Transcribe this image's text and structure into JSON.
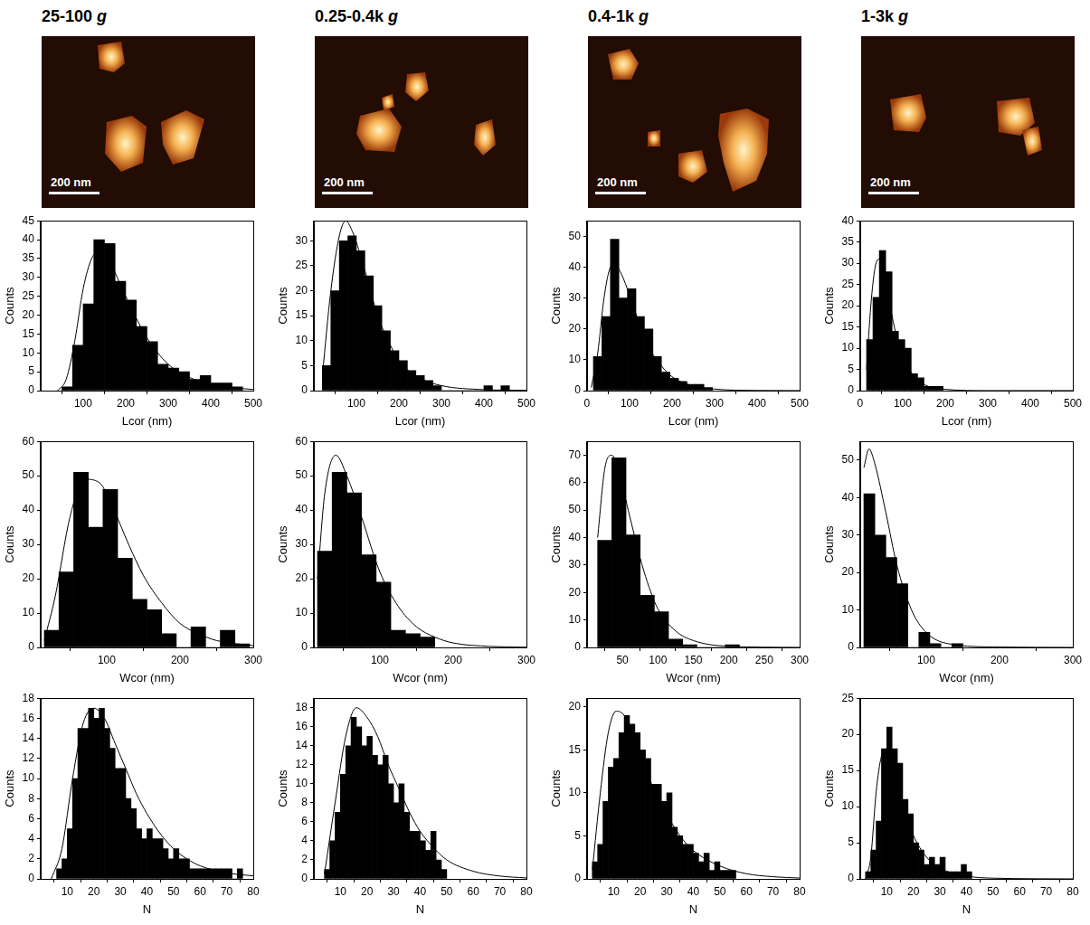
{
  "panel_titles": [
    "25-100 g",
    "0.25-0.4k g",
    "0.4-1k g",
    "1-3k g"
  ],
  "images": [
    {
      "scale_bar": "200 nm"
    },
    {
      "scale_bar": "200 nm"
    },
    {
      "scale_bar": "200 nm"
    },
    {
      "scale_bar": "200 nm"
    }
  ],
  "chart_data": [
    {
      "type": "histogram",
      "xlabel": "Lcor (nm)",
      "ylabel": "Counts",
      "color": "#000000",
      "grid": false,
      "bins": [
        50,
        75,
        100,
        125,
        150,
        175,
        200,
        225,
        250,
        275,
        300,
        325,
        350,
        375,
        400,
        425,
        450,
        475
      ],
      "counts": [
        1,
        12,
        23,
        40,
        39,
        29,
        24,
        17,
        13,
        7,
        6,
        5,
        3,
        4,
        2,
        2,
        1
      ],
      "fit": {
        "x": [
          40,
          60,
          80,
          100,
          120,
          140,
          160,
          180,
          200,
          250,
          300,
          350,
          400,
          450,
          500
        ],
        "values": [
          0,
          3,
          13,
          27,
          35,
          37,
          35,
          30,
          25,
          14,
          7,
          3.5,
          1.7,
          0.8,
          0.3
        ]
      },
      "xlim": [
        0,
        500
      ],
      "xticks": [
        100,
        200,
        300,
        400,
        500
      ],
      "ylim": [
        0,
        45
      ],
      "yticks": [
        0,
        5,
        10,
        15,
        20,
        25,
        30,
        35,
        40,
        45
      ]
    },
    {
      "type": "histogram",
      "xlabel": "Lcor (nm)",
      "ylabel": "Counts",
      "color": "#000000",
      "grid": false,
      "bins": [
        20,
        40,
        60,
        80,
        100,
        120,
        140,
        160,
        180,
        200,
        220,
        240,
        260,
        280,
        300,
        320,
        340,
        360,
        380,
        400,
        420,
        440,
        460
      ],
      "counts": [
        5,
        20,
        30,
        31,
        28,
        23,
        17,
        12,
        8,
        6,
        4,
        3,
        2,
        1,
        0,
        0,
        0,
        0,
        0,
        1,
        0,
        1
      ],
      "fit": {
        "x": [
          20,
          40,
          60,
          75,
          90,
          110,
          130,
          150,
          175,
          200,
          250,
          300,
          400,
          500
        ],
        "values": [
          3,
          20,
          31,
          34,
          32,
          27,
          21,
          15,
          10,
          6,
          2.5,
          1,
          0.2,
          0.05
        ]
      },
      "xlim": [
        0,
        500
      ],
      "xticks": [
        100,
        200,
        300,
        400,
        500
      ],
      "ylim": [
        0,
        34
      ],
      "yticks": [
        0,
        5,
        10,
        15,
        20,
        25,
        30
      ]
    },
    {
      "type": "histogram",
      "xlabel": "Lcor (nm)",
      "ylabel": "Counts",
      "color": "#000000",
      "grid": false,
      "bins": [
        15,
        35,
        55,
        75,
        95,
        115,
        135,
        155,
        175,
        195,
        215,
        235,
        255,
        275,
        295
      ],
      "counts": [
        11,
        24,
        49,
        30,
        33,
        24,
        20,
        11,
        6,
        4,
        3,
        2,
        2,
        1
      ],
      "fit": {
        "x": [
          10,
          25,
          40,
          55,
          65,
          80,
          100,
          125,
          150,
          175,
          200,
          250,
          300,
          400,
          500
        ],
        "values": [
          1,
          12,
          30,
          40,
          41,
          38,
          31,
          21,
          13,
          8,
          4.5,
          1.5,
          0.5,
          0.05,
          0
        ]
      },
      "xlim": [
        0,
        500
      ],
      "xticks": [
        0,
        100,
        200,
        300,
        400,
        500
      ],
      "ylim": [
        0,
        55
      ],
      "yticks": [
        0,
        10,
        20,
        30,
        40,
        50
      ]
    },
    {
      "type": "histogram",
      "xlabel": "Lcor (nm)",
      "ylabel": "Counts",
      "color": "#000000",
      "grid": false,
      "bins": [
        15,
        30,
        45,
        60,
        75,
        90,
        105,
        120,
        135,
        150,
        165,
        180,
        195
      ],
      "counts": [
        12,
        22,
        33,
        28,
        14,
        12,
        10,
        4,
        3,
        1,
        1,
        1
      ],
      "fit": {
        "x": [
          15,
          25,
          35,
          45,
          55,
          70,
          90,
          110,
          130,
          160,
          200,
          300,
          500
        ],
        "values": [
          5,
          20,
          29,
          31,
          28,
          20,
          11,
          6,
          3,
          1,
          0.3,
          0,
          0
        ]
      },
      "xlim": [
        0,
        500
      ],
      "xticks": [
        0,
        100,
        200,
        300,
        400,
        500
      ],
      "ylim": [
        0,
        40
      ],
      "yticks": [
        0,
        5,
        10,
        15,
        20,
        25,
        30,
        35,
        40
      ]
    },
    {
      "type": "histogram",
      "xlabel": "Wcor (nm)",
      "ylabel": "Counts",
      "color": "#000000",
      "grid": false,
      "bins": [
        15,
        35,
        55,
        75,
        95,
        115,
        135,
        155,
        175,
        195,
        215,
        235,
        255,
        275,
        295
      ],
      "counts": [
        5,
        22,
        51,
        35,
        46,
        26,
        14,
        11,
        4,
        0,
        6,
        0,
        5,
        1
      ],
      "fit": {
        "x": [
          15,
          30,
          50,
          70,
          90,
          110,
          130,
          150,
          175,
          200,
          225,
          250,
          300
        ],
        "values": [
          2,
          15,
          38,
          49,
          48,
          40,
          30,
          21,
          13,
          7,
          4,
          2,
          0.5
        ]
      },
      "xlim": [
        10,
        300
      ],
      "xticks": [
        100,
        200,
        300
      ],
      "ylim": [
        0,
        60
      ],
      "yticks": [
        0,
        10,
        20,
        30,
        40,
        50,
        60
      ]
    },
    {
      "type": "histogram",
      "xlabel": "Wcor (nm)",
      "ylabel": "Counts",
      "color": "#000000",
      "grid": false,
      "bins": [
        15,
        35,
        55,
        75,
        95,
        115,
        135,
        155,
        175
      ],
      "counts": [
        28,
        51,
        45,
        27,
        19,
        5,
        4,
        3
      ],
      "fit": {
        "x": [
          15,
          25,
          40,
          55,
          75,
          100,
          125,
          150,
          175,
          200,
          250,
          300
        ],
        "values": [
          20,
          45,
          56,
          50,
          38,
          22,
          12,
          6,
          3,
          1.3,
          0.3,
          0.05
        ]
      },
      "xlim": [
        10,
        300
      ],
      "xticks": [
        100,
        200,
        300
      ],
      "ylim": [
        0,
        60
      ],
      "yticks": [
        0,
        10,
        20,
        30,
        40,
        50,
        60
      ]
    },
    {
      "type": "histogram",
      "xlabel": "Wcor (nm)",
      "ylabel": "Counts",
      "color": "#000000",
      "grid": false,
      "bins": [
        15,
        35,
        55,
        75,
        95,
        115,
        135,
        155,
        175,
        195,
        215
      ],
      "counts": [
        39,
        69,
        41,
        19,
        13,
        3,
        1,
        0,
        0,
        1
      ],
      "fit": {
        "x": [
          15,
          25,
          35,
          45,
          60,
          80,
          100,
          125,
          150,
          200,
          300
        ],
        "values": [
          40,
          65,
          70,
          64,
          48,
          28,
          14,
          6,
          2.5,
          0.4,
          0
        ]
      },
      "xlim": [
        0,
        300
      ],
      "xticks": [
        50,
        100,
        150,
        200,
        250,
        300
      ],
      "ylim": [
        0,
        75
      ],
      "yticks": [
        0,
        10,
        20,
        30,
        40,
        50,
        60,
        70
      ]
    },
    {
      "type": "histogram",
      "xlabel": "Wcor (nm)",
      "ylabel": "Counts",
      "color": "#000000",
      "grid": false,
      "bins": [
        15,
        30,
        45,
        60,
        75,
        90,
        105,
        120,
        135,
        150
      ],
      "counts": [
        41,
        30,
        24,
        17,
        0,
        4,
        1,
        0,
        1
      ],
      "fit": {
        "x": [
          15,
          22,
          30,
          45,
          60,
          80,
          100,
          130,
          200,
          300
        ],
        "values": [
          48,
          53,
          49,
          36,
          22,
          10,
          4,
          1,
          0.1,
          0
        ]
      },
      "xlim": [
        10,
        300
      ],
      "xticks": [
        100,
        200,
        300
      ],
      "ylim": [
        0,
        55
      ],
      "yticks": [
        0,
        10,
        20,
        30,
        40,
        50
      ]
    },
    {
      "type": "histogram",
      "xlabel": "N",
      "ylabel": "Counts",
      "color": "#000000",
      "grid": false,
      "bins": [
        6,
        8,
        10,
        12,
        14,
        16,
        18,
        20,
        22,
        24,
        26,
        28,
        30,
        32,
        34,
        36,
        38,
        40,
        42,
        44,
        46,
        48,
        50,
        52,
        54,
        56,
        58,
        60,
        62,
        64,
        66,
        68,
        70,
        72,
        74,
        76
      ],
      "counts": [
        1,
        2,
        5,
        10,
        15,
        15,
        17,
        16,
        17,
        15,
        13,
        11,
        11,
        8,
        7,
        5,
        4,
        5,
        4,
        4,
        3,
        2,
        3,
        2,
        2,
        1,
        1,
        1,
        1,
        1,
        1,
        1,
        1,
        0,
        1
      ],
      "fit": {
        "x": [
          4,
          8,
          12,
          16,
          20,
          24,
          28,
          32,
          36,
          40,
          45,
          50,
          55,
          60,
          70,
          80
        ],
        "values": [
          0,
          3,
          10,
          15.5,
          17,
          16,
          13.5,
          11,
          8.5,
          6.5,
          4.5,
          3,
          2,
          1.3,
          0.6,
          0.3
        ]
      },
      "xlim": [
        0,
        80
      ],
      "xticks": [
        10,
        20,
        30,
        40,
        50,
        60,
        70,
        80
      ],
      "ylim": [
        0,
        18
      ],
      "yticks": [
        0,
        2,
        4,
        6,
        8,
        10,
        12,
        14,
        16,
        18
      ]
    },
    {
      "type": "histogram",
      "xlabel": "N",
      "ylabel": "Counts",
      "color": "#000000",
      "grid": false,
      "bins": [
        4,
        6,
        8,
        10,
        12,
        14,
        16,
        18,
        20,
        22,
        24,
        26,
        28,
        30,
        32,
        34,
        36,
        38,
        40,
        42,
        44,
        46,
        48,
        50
      ],
      "counts": [
        1,
        4,
        7,
        11,
        14,
        17,
        16,
        14,
        15,
        13,
        12,
        13,
        10,
        8,
        10,
        7,
        5,
        5,
        4,
        3,
        5,
        2,
        1
      ],
      "fit": {
        "x": [
          4,
          8,
          12,
          16,
          20,
          24,
          28,
          32,
          36,
          40,
          45,
          50,
          60,
          70,
          80
        ],
        "values": [
          0.5,
          8,
          15,
          18,
          17,
          15,
          12,
          9.5,
          7,
          5,
          3.3,
          2,
          0.8,
          0.3,
          0.1
        ]
      },
      "xlim": [
        0,
        80
      ],
      "xticks": [
        10,
        20,
        30,
        40,
        50,
        60,
        70,
        80
      ],
      "ylim": [
        0,
        19
      ],
      "yticks": [
        0,
        2,
        4,
        6,
        8,
        10,
        12,
        14,
        16,
        18
      ]
    },
    {
      "type": "histogram",
      "xlabel": "N",
      "ylabel": "Counts",
      "color": "#000000",
      "grid": false,
      "bins": [
        2,
        4,
        6,
        8,
        10,
        12,
        14,
        16,
        18,
        20,
        22,
        24,
        26,
        28,
        30,
        32,
        34,
        36,
        38,
        40,
        42,
        44,
        46,
        48,
        50,
        52,
        54,
        56
      ],
      "counts": [
        2,
        4,
        9,
        13,
        14,
        17,
        19,
        18,
        17,
        15,
        14,
        11,
        11,
        9,
        10,
        6,
        5,
        4,
        4,
        3,
        2,
        3,
        1,
        2,
        1,
        1,
        1
      ],
      "fit": {
        "x": [
          2,
          5,
          8,
          11,
          14,
          17,
          20,
          25,
          30,
          35,
          40,
          50,
          60,
          70,
          80
        ],
        "values": [
          1,
          10,
          17,
          19.5,
          19,
          17,
          14.5,
          10.5,
          7.5,
          5,
          3.3,
          1.5,
          0.6,
          0.25,
          0.1
        ]
      },
      "xlim": [
        0,
        80
      ],
      "xticks": [
        10,
        20,
        30,
        40,
        50,
        60,
        70,
        80
      ],
      "ylim": [
        0,
        21
      ],
      "yticks": [
        0,
        5,
        10,
        15,
        20
      ]
    },
    {
      "type": "histogram",
      "xlabel": "N",
      "ylabel": "Counts",
      "color": "#000000",
      "grid": false,
      "bins": [
        2,
        4,
        6,
        8,
        10,
        12,
        14,
        16,
        18,
        20,
        22,
        24,
        26,
        28,
        30,
        32,
        34,
        36,
        38,
        40,
        42
      ],
      "counts": [
        1,
        4,
        8,
        18,
        21,
        18,
        16,
        11,
        9,
        5,
        4,
        2,
        3,
        2,
        3,
        1,
        1,
        1,
        2,
        1
      ],
      "fit": {
        "x": [
          2,
          4,
          6,
          8,
          10,
          12,
          14,
          17,
          20,
          25,
          30,
          40,
          50,
          80
        ],
        "values": [
          0,
          3,
          12,
          17,
          18,
          16,
          13,
          9,
          6,
          3,
          1.5,
          0.4,
          0.1,
          0
        ]
      },
      "xlim": [
        0,
        80
      ],
      "xticks": [
        10,
        20,
        30,
        40,
        50,
        60,
        70,
        80
      ],
      "ylim": [
        0,
        25
      ],
      "yticks": [
        0,
        5,
        10,
        15,
        20,
        25
      ]
    }
  ]
}
